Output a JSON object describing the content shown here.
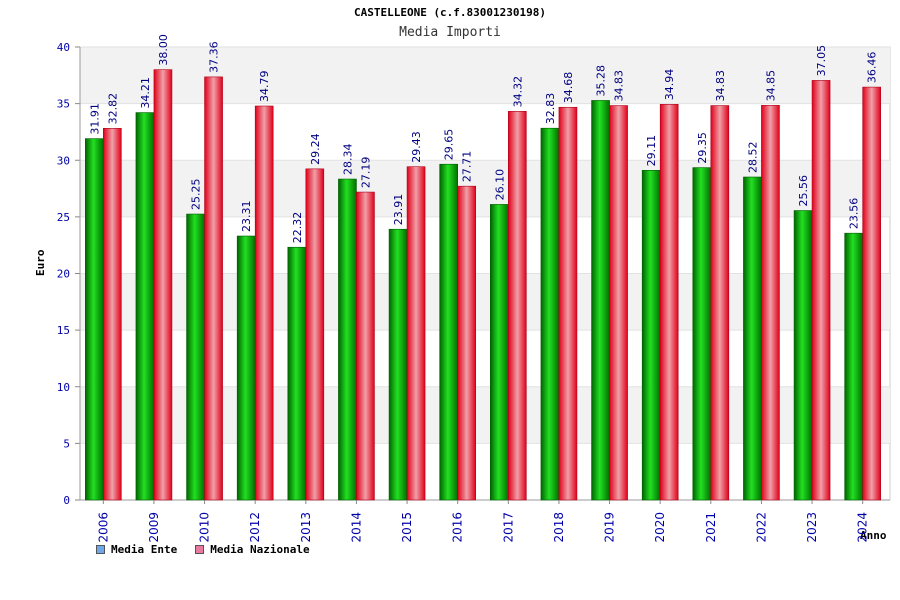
{
  "chart_data": {
    "type": "bar",
    "title": "CASTELLEONE (c.f.83001230198)",
    "subtitle": "Media Importi",
    "xlabel": "Anno",
    "ylabel": "Euro",
    "ylim": [
      0,
      40
    ],
    "yticks": [
      0,
      5,
      10,
      15,
      20,
      25,
      30,
      35,
      40
    ],
    "categories": [
      "2006",
      "2009",
      "2010",
      "2012",
      "2013",
      "2014",
      "2015",
      "2016",
      "2017",
      "2018",
      "2019",
      "2020",
      "2021",
      "2022",
      "2023",
      "2024"
    ],
    "series": [
      {
        "name": "Media Ente",
        "color": "#00b000",
        "values": [
          31.91,
          34.21,
          25.25,
          23.31,
          22.32,
          28.34,
          23.91,
          29.65,
          26.1,
          32.83,
          35.28,
          29.11,
          29.35,
          28.52,
          25.56,
          23.56
        ],
        "labels": [
          "31.91",
          "34.21",
          "25.25",
          "23.31",
          "22.32",
          "28.34",
          "23.91",
          "29.65",
          "26.10",
          "32.83",
          "35.28",
          "29.11",
          "29.35",
          "28.52",
          "25.56",
          "23.56"
        ]
      },
      {
        "name": "Media Nazionale",
        "color": "#e8202a",
        "values": [
          32.82,
          38.0,
          37.36,
          34.79,
          29.24,
          27.19,
          29.43,
          27.71,
          34.32,
          34.68,
          34.83,
          34.94,
          34.83,
          34.85,
          37.05,
          36.46
        ],
        "labels": [
          "32.82",
          "38.00",
          "37.36",
          "34.79",
          "29.24",
          "27.19",
          "29.43",
          "27.71",
          "34.32",
          "34.68",
          "34.83",
          "34.94",
          "34.83",
          "34.85",
          "37.05",
          "36.46"
        ]
      }
    ],
    "legend": [
      {
        "label": "Media Ente",
        "color": "#6fa8e8"
      },
      {
        "label": "Media Nazionale",
        "color": "#e87aa0"
      }
    ],
    "grid": true,
    "legend_position": "bottom-left"
  }
}
